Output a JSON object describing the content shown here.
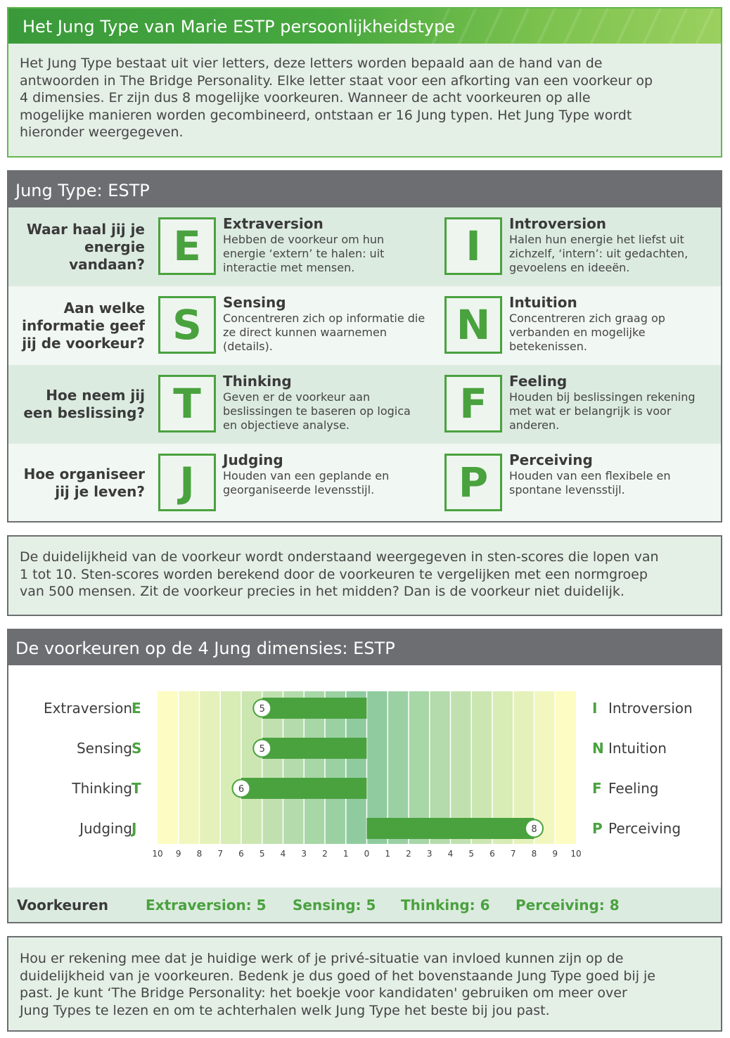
{
  "intro": {
    "title": "Het Jung Type van Marie ESTP persoonlijkheidstype",
    "lines": [
      "Het Jung Type bestaat uit vier letters, deze letters worden bepaald aan de hand van de",
      "antwoorden in The Bridge Personality. Elke letter staat voor een afkorting van een voorkeur op",
      "4 dimensies. Er zijn dus 8 mogelijke voorkeuren. Wanneer de acht voorkeuren op alle",
      "mogelijke manieren worden gecombineerd, ontstaan er 16 Jung typen. Het Jung Type wordt",
      "hieronder weergegeven."
    ]
  },
  "jung_type": {
    "title": "Jung Type: ESTP",
    "rows": [
      {
        "question": [
          "Waar haal jij je",
          "energie",
          "vandaan?"
        ],
        "left": {
          "letter": "E",
          "title": "Extraversion",
          "desc": [
            "Hebben de voorkeur om hun",
            "energie ‘extern’ te halen: uit",
            "interactie met mensen."
          ]
        },
        "right": {
          "letter": "I",
          "title": "Introversion",
          "desc": [
            "Halen hun energie het liefst uit",
            "zichzelf, ‘intern’: uit gedachten,",
            "gevoelens en ideeën."
          ]
        }
      },
      {
        "question": [
          "Aan welke",
          "informatie geef",
          "jij de voorkeur?"
        ],
        "left": {
          "letter": "S",
          "title": "Sensing",
          "desc": [
            "Concentreren zich op informatie die",
            "ze direct kunnen waarnemen",
            "(details)."
          ]
        },
        "right": {
          "letter": "N",
          "title": "Intuition",
          "desc": [
            "Concentreren zich graag op",
            "verbanden en mogelijke",
            "betekenissen."
          ]
        }
      },
      {
        "question": [
          "Hoe neem jij",
          "een beslissing?"
        ],
        "left": {
          "letter": "T",
          "title": "Thinking",
          "desc": [
            "Geven er de voorkeur aan",
            "beslissingen te baseren op logica",
            "en objectieve analyse."
          ]
        },
        "right": {
          "letter": "F",
          "title": "Feeling",
          "desc": [
            "Houden bij beslissingen rekening",
            "met wat er belangrijk is voor",
            "anderen."
          ]
        }
      },
      {
        "question": [
          "Hoe organiseer",
          "jij je leven?"
        ],
        "left": {
          "letter": "J",
          "title": "Judging",
          "desc": [
            "Houden van een geplande en",
            "georganiseerde levensstijl."
          ]
        },
        "right": {
          "letter": "P",
          "title": "Perceiving",
          "desc": [
            "Houden van een flexibele en",
            "spontane levensstijl."
          ]
        }
      }
    ]
  },
  "sten": {
    "lines": [
      "De duidelijkheid van de voorkeur wordt onderstaand weergegeven in sten-scores die lopen van",
      "1 tot 10. Sten-scores worden berekend door de voorkeuren te vergelijken met een normgroep",
      "van 500 mensen. Zit de voorkeur precies in het midden? Dan is de voorkeur niet duidelijk."
    ]
  },
  "dimensions": {
    "title": "De voorkeuren op de 4 Jung dimensies: ESTP",
    "footer_label": "Voorkeuren",
    "footer_values": [
      "Extraversion: 5",
      "Sensing: 5",
      "Thinking: 6",
      "Perceiving: 8"
    ]
  },
  "chart_data": {
    "type": "bar",
    "orientation": "horizontal-diverging",
    "x_ticks": [
      "10",
      "9",
      "8",
      "7",
      "6",
      "5",
      "4",
      "3",
      "2",
      "1",
      "0",
      "1",
      "2",
      "3",
      "4",
      "5",
      "6",
      "7",
      "8",
      "9",
      "10"
    ],
    "xlim": [
      -10,
      10
    ],
    "rows": [
      {
        "left_label": "Extraversion",
        "left_letter": "E",
        "right_letter": "I",
        "right_label": "Introversion",
        "side": "left",
        "value": 5
      },
      {
        "left_label": "Sensing",
        "left_letter": "S",
        "right_letter": "N",
        "right_label": "Intuition",
        "side": "left",
        "value": 5
      },
      {
        "left_label": "Thinking",
        "left_letter": "T",
        "right_letter": "F",
        "right_label": "Feeling",
        "side": "left",
        "value": 6
      },
      {
        "left_label": "Judging",
        "left_letter": "J",
        "right_letter": "P",
        "right_label": "Perceiving",
        "side": "right",
        "value": 8
      }
    ],
    "colors": {
      "bar": "#4aa23f",
      "letter": "#4aa23f",
      "band_outer": "#fdfcc2",
      "band_inner": "#8fcb9f"
    }
  },
  "closing": {
    "lines": [
      "Hou er rekening mee dat je huidige werk of je privé-situatie van invloed kunnen zijn op de",
      "duidelijkheid van je voorkeuren. Bedenk je dus goed of het bovenstaande Jung Type goed bij je",
      "past. Je kunt ‘The Bridge Personality: het boekje voor kandidaten' gebruiken om meer over",
      "Jung Types te lezen en om te achterhalen welk Jung Type het beste bij jou past."
    ]
  }
}
